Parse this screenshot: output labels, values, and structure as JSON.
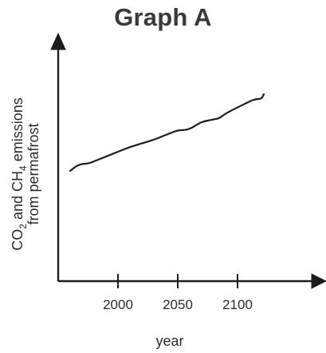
{
  "chart_data": {
    "type": "line",
    "title": "Graph A",
    "xlabel": "year",
    "ylabel_parts": {
      "line1_pre": "CO",
      "line1_sub1": "2",
      "line1_mid": " and CH",
      "line1_sub2": "4",
      "line1_post": " emissions",
      "line2": "from permafrost"
    },
    "x_ticks": [
      2000,
      2050,
      2100
    ],
    "x_tick_labels": [
      "2000",
      "2050",
      "2100"
    ],
    "xlim": [
      1950,
      2175
    ],
    "ylim": [
      0,
      100
    ],
    "y_ticks": [],
    "grid": false,
    "legend": "none",
    "series": [
      {
        "x": [
          1960,
          1965,
          1970,
          1975,
          1980,
          1990,
          2000,
          2010,
          2020,
          2030,
          2040,
          2050,
          2055,
          2060,
          2065,
          2070,
          2080,
          2085,
          2090,
          2100,
          2110,
          2115,
          2120,
          2122
        ],
        "y": [
          46,
          48,
          49,
          49,
          50,
          52,
          54,
          56,
          57.5,
          59,
          61,
          63,
          63,
          63.5,
          65,
          66.5,
          67.5,
          68,
          70,
          72.5,
          75,
          76,
          76,
          78
        ]
      }
    ]
  }
}
